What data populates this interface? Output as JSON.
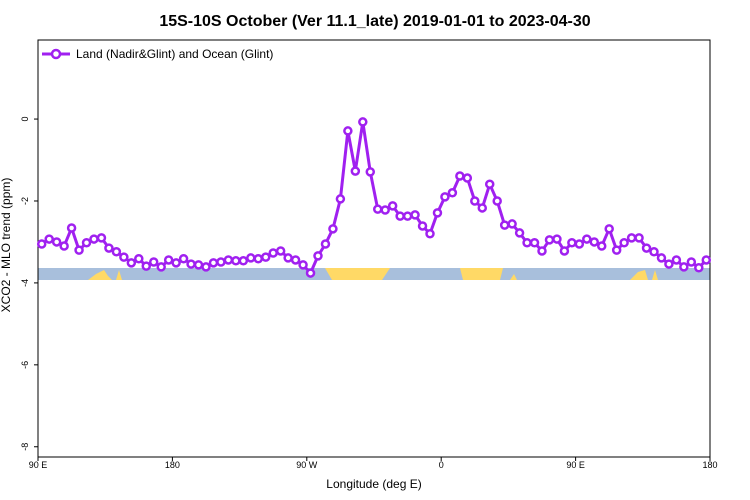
{
  "chart_data": {
    "type": "line",
    "title": "15S-10S October (Ver 11.1_late)   2019-01-01 to 2023-04-30",
    "xlabel": "Longitude (deg E)",
    "ylabel": "XCO2 - MLO trend (ppm)",
    "xlim": [
      90,
      540
    ],
    "ylim": [
      -8.25,
      1.93
    ],
    "xticks": [
      {
        "value": 90,
        "label": "90 E"
      },
      180,
      {
        "value": 270,
        "label": "90 W"
      },
      {
        "value": 360,
        "label": "0"
      },
      {
        "value": 450,
        "label": "90 E"
      },
      {
        "value": 540,
        "label": "180"
      }
    ],
    "yticks": [
      0,
      -2,
      -4,
      -6,
      -8
    ],
    "legend": "top-left",
    "x": [
      92.5,
      97.5,
      102.5,
      107.5,
      112.5,
      117.5,
      122.5,
      127.5,
      132.5,
      137.5,
      142.5,
      147.5,
      152.5,
      157.5,
      162.5,
      167.5,
      172.5,
      177.5,
      182.5,
      187.5,
      192.5,
      197.5,
      202.5,
      207.5,
      212.5,
      217.5,
      222.5,
      227.5,
      232.5,
      237.5,
      242.5,
      247.5,
      252.5,
      257.5,
      262.5,
      267.5,
      272.5,
      277.5,
      282.5,
      287.5,
      292.5,
      297.5,
      302.5,
      307.5,
      312.5,
      317.5,
      322.5,
      327.5,
      332.5,
      337.5,
      342.5,
      347.5,
      352.5,
      357.5,
      362.5,
      367.5,
      372.5,
      377.5,
      382.5,
      387.5,
      392.5,
      397.5,
      402.5,
      407.5,
      412.5,
      417.5,
      422.5,
      427.5,
      432.5,
      437.5,
      442.5,
      447.5,
      452.5,
      457.5,
      462.5,
      467.5,
      472.5,
      477.5,
      482.5,
      487.5,
      492.5,
      497.5,
      502.5,
      507.5,
      512.5,
      517.5,
      522.5,
      527.5,
      532.5,
      537.5
    ],
    "series": [
      {
        "name": "Land (Nadir&Glint) and Ocean (Glint)",
        "color": "#a020f0",
        "values": [
          -3.05,
          -2.93,
          -3.0,
          -3.1,
          -2.66,
          -3.2,
          -3.02,
          -2.93,
          -2.9,
          -3.15,
          -3.24,
          -3.37,
          -3.51,
          -3.41,
          -3.59,
          -3.49,
          -3.61,
          -3.44,
          -3.51,
          -3.41,
          -3.54,
          -3.56,
          -3.61,
          -3.51,
          -3.49,
          -3.44,
          -3.46,
          -3.46,
          -3.39,
          -3.41,
          -3.37,
          -3.27,
          -3.22,
          -3.39,
          -3.44,
          -3.56,
          -3.76,
          -3.34,
          -3.05,
          -2.68,
          -1.95,
          -0.29,
          -1.27,
          -0.07,
          -1.29,
          -2.2,
          -2.22,
          -2.12,
          -2.37,
          -2.37,
          -2.34,
          -2.61,
          -2.8,
          -2.29,
          -1.9,
          -1.8,
          -1.39,
          -1.44,
          -2.0,
          -2.17,
          -1.59,
          -2.0,
          -2.59,
          -2.56,
          -2.78,
          -3.02,
          -3.02,
          -3.22,
          -2.95,
          -2.93,
          -3.22,
          -3.02,
          -3.05,
          -2.93,
          -3.0,
          -3.1,
          -2.68,
          -3.2,
          -3.02,
          -2.9,
          -2.9,
          -3.15,
          -3.24,
          -3.39,
          -3.54,
          -3.44,
          -3.61,
          -3.49,
          -3.63,
          -3.44
        ]
      }
    ]
  }
}
